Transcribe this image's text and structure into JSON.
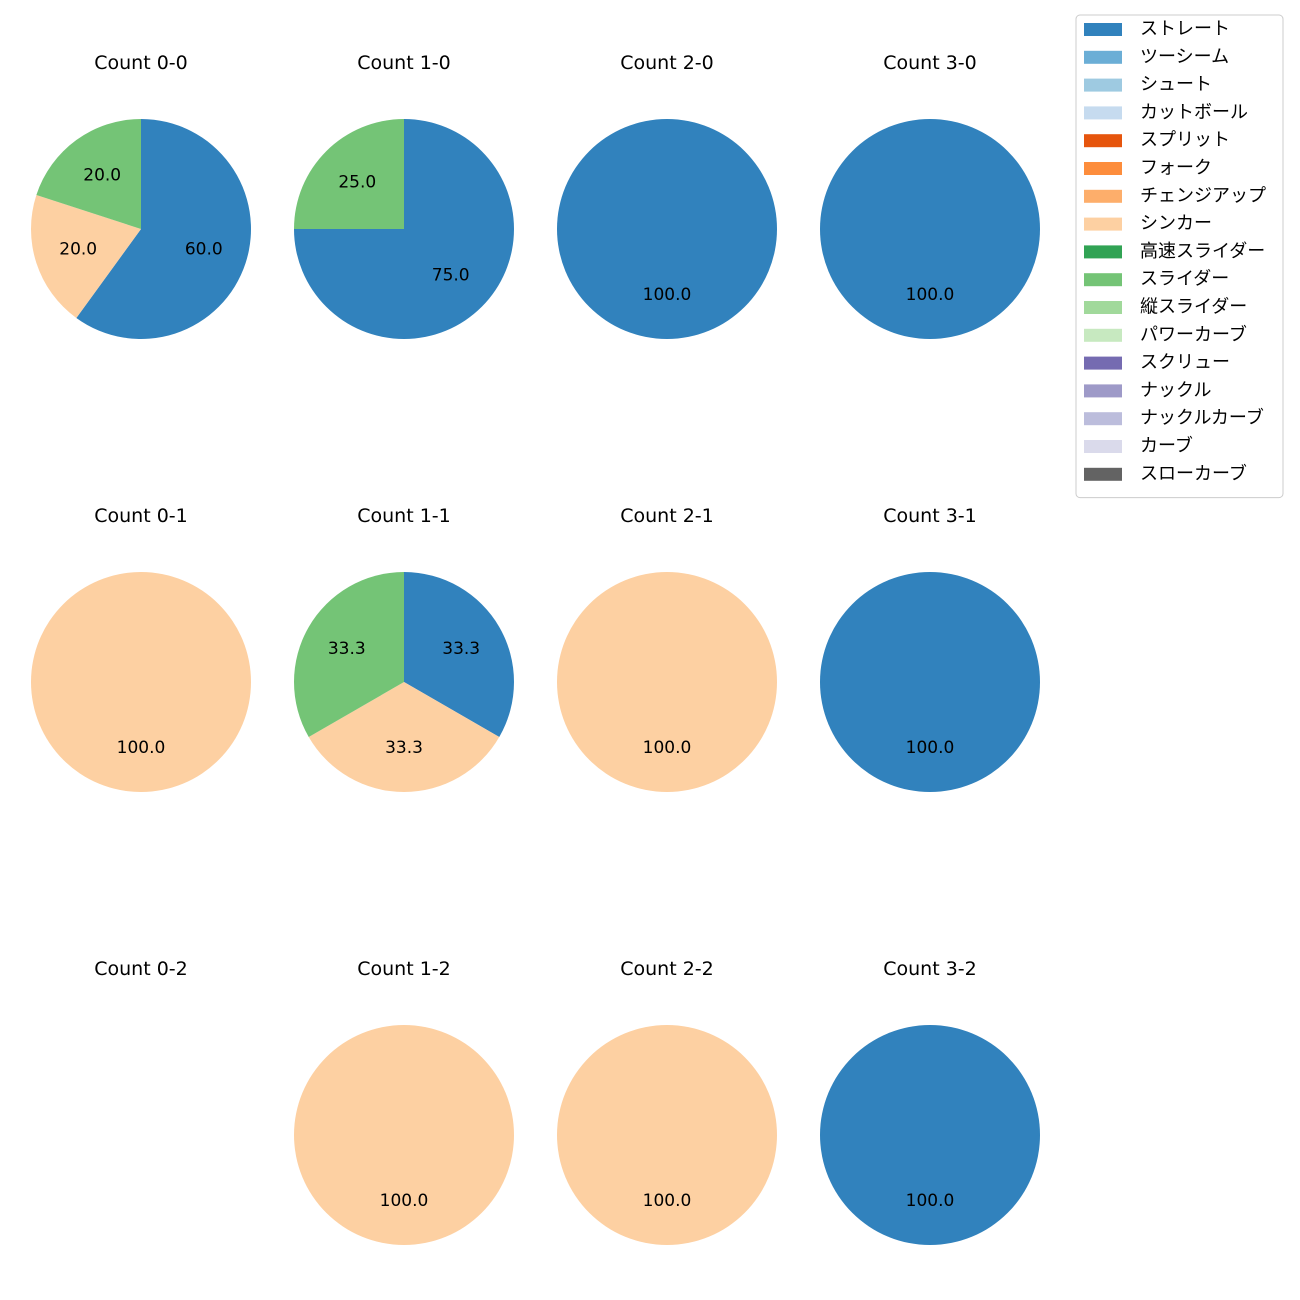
{
  "chart_data": {
    "type": "pie",
    "legend_position": "top-right",
    "categories": [
      {
        "name": "ストレート",
        "color": "#3182bd"
      },
      {
        "name": "ツーシーム",
        "color": "#6baed6"
      },
      {
        "name": "シュート",
        "color": "#9ecae1"
      },
      {
        "name": "カットボール",
        "color": "#c6dbef"
      },
      {
        "name": "スプリット",
        "color": "#e6550d"
      },
      {
        "name": "フォーク",
        "color": "#fd8d3c"
      },
      {
        "name": "チェンジアップ",
        "color": "#fdae6b"
      },
      {
        "name": "シンカー",
        "color": "#fdd0a2"
      },
      {
        "name": "高速スライダー",
        "color": "#31a354"
      },
      {
        "name": "スライダー",
        "color": "#74c476"
      },
      {
        "name": "縦スライダー",
        "color": "#a1d99b"
      },
      {
        "name": "パワーカーブ",
        "color": "#c7e9c0"
      },
      {
        "name": "スクリュー",
        "color": "#756bb1"
      },
      {
        "name": "ナックル",
        "color": "#9e9ac8"
      },
      {
        "name": "ナックルカーブ",
        "color": "#bcbddc"
      },
      {
        "name": "カーブ",
        "color": "#dadaeb"
      },
      {
        "name": "スローカーブ",
        "color": "#636363"
      }
    ],
    "charts": [
      {
        "title": "Count 0-0",
        "slices": [
          {
            "category": "ストレート",
            "value": 60.0,
            "label": "60.0"
          },
          {
            "category": "シンカー",
            "value": 20.0,
            "label": "20.0"
          },
          {
            "category": "スライダー",
            "value": 20.0,
            "label": "20.0"
          }
        ]
      },
      {
        "title": "Count 1-0",
        "slices": [
          {
            "category": "ストレート",
            "value": 75.0,
            "label": "75.0"
          },
          {
            "category": "スライダー",
            "value": 25.0,
            "label": "25.0"
          }
        ]
      },
      {
        "title": "Count 2-0",
        "slices": [
          {
            "category": "ストレート",
            "value": 100.0,
            "label": "100.0"
          }
        ]
      },
      {
        "title": "Count 3-0",
        "slices": [
          {
            "category": "ストレート",
            "value": 100.0,
            "label": "100.0"
          }
        ]
      },
      {
        "title": "Count 0-1",
        "slices": [
          {
            "category": "シンカー",
            "value": 100.0,
            "label": "100.0"
          }
        ]
      },
      {
        "title": "Count 1-1",
        "slices": [
          {
            "category": "ストレート",
            "value": 33.3,
            "label": "33.3"
          },
          {
            "category": "シンカー",
            "value": 33.3,
            "label": "33.3"
          },
          {
            "category": "スライダー",
            "value": 33.3,
            "label": "33.3"
          }
        ]
      },
      {
        "title": "Count 2-1",
        "slices": [
          {
            "category": "シンカー",
            "value": 100.0,
            "label": "100.0"
          }
        ]
      },
      {
        "title": "Count 3-1",
        "slices": [
          {
            "category": "ストレート",
            "value": 100.0,
            "label": "100.0"
          }
        ]
      },
      {
        "title": "Count 0-2",
        "slices": []
      },
      {
        "title": "Count 1-2",
        "slices": [
          {
            "category": "シンカー",
            "value": 100.0,
            "label": "100.0"
          }
        ]
      },
      {
        "title": "Count 2-2",
        "slices": [
          {
            "category": "シンカー",
            "value": 100.0,
            "label": "100.0"
          }
        ]
      },
      {
        "title": "Count 3-2",
        "slices": [
          {
            "category": "ストレート",
            "value": 100.0,
            "label": "100.0"
          }
        ]
      }
    ]
  }
}
